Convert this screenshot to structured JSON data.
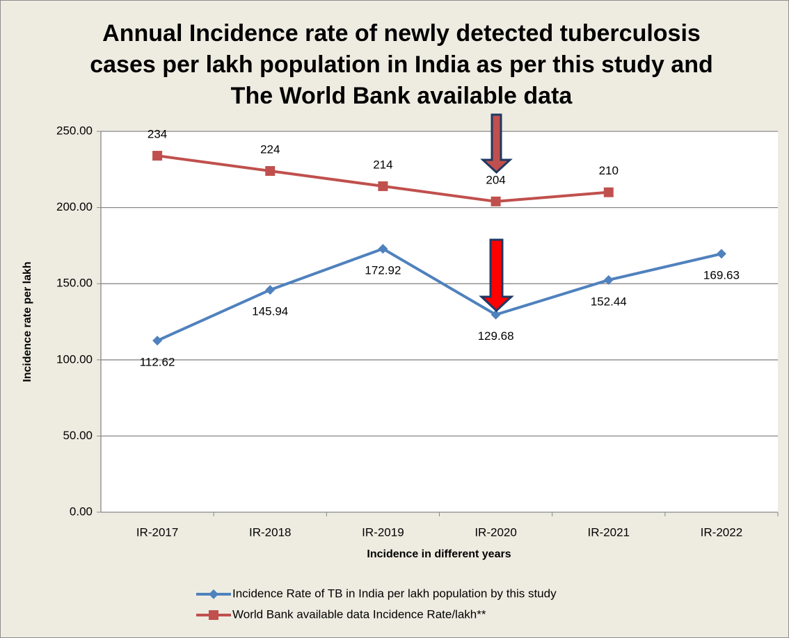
{
  "chart_data": {
    "type": "line",
    "title": [
      "Annual Incidence rate of newly detected tuberculosis",
      "cases per lakh population in India as per this study and",
      "The World Bank available data"
    ],
    "y_label": "Incidence rate per lakh",
    "x_label": "Incidence in different years",
    "categories": [
      "IR-2017",
      "IR-2018",
      "IR-2019",
      "IR-2020",
      "IR-2021",
      "IR-2022"
    ],
    "series": [
      {
        "name": "Incidence Rate of TB in India per lakh population by this study",
        "color": "#4f81bd",
        "marker": "diamond",
        "label_position": "below",
        "values": [
          112.62,
          145.94,
          172.92,
          129.68,
          152.44,
          169.63
        ]
      },
      {
        "name": "World Bank available data Incidence Rate/lakh**",
        "color": "#c0504d",
        "marker": "square",
        "label_position": "above",
        "values": [
          234,
          224,
          214,
          204,
          210,
          null
        ]
      }
    ],
    "ylim": [
      0,
      250
    ],
    "yticks": [
      {
        "value": 0,
        "label": "0.00"
      },
      {
        "value": 50,
        "label": "50.00"
      },
      {
        "value": 100,
        "label": "100.00"
      },
      {
        "value": 150,
        "label": "150.00"
      },
      {
        "value": 200,
        "label": "200.00"
      },
      {
        "value": 250,
        "label": "250.00"
      }
    ],
    "grid": true,
    "legend": "bottom"
  }
}
